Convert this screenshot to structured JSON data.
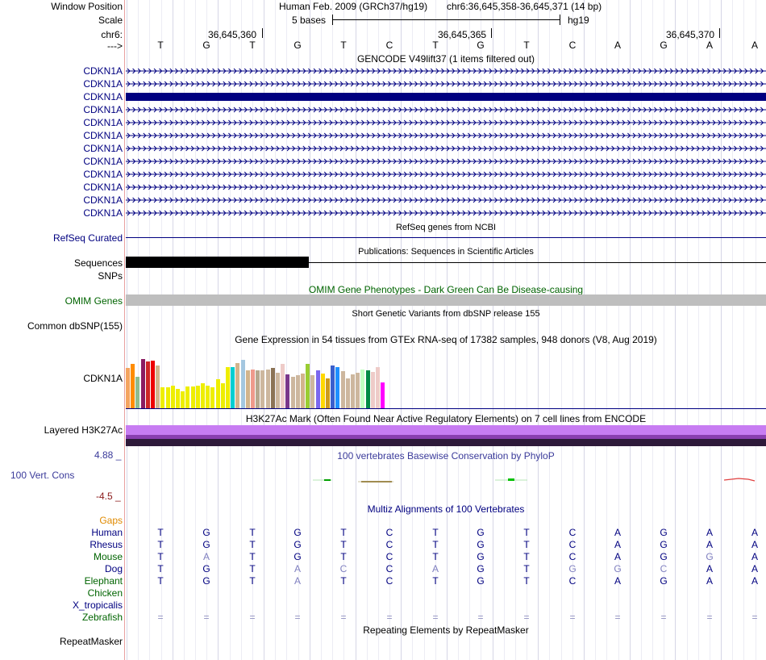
{
  "header": {
    "window_position_label": "Window Position",
    "assembly": "Human Feb. 2009 (GRCh37/hg19)",
    "position": "chr6:36,645,358-36,645,371 (14 bp)",
    "scale_label": "Scale",
    "scale_text": "5 bases",
    "scale_db": "hg19",
    "chrom_label": "chr6:",
    "coords": [
      "36,645,360",
      "36,645,365",
      "36,645,370"
    ],
    "strand_label": "--->",
    "bases": [
      "T",
      "G",
      "T",
      "G",
      "T",
      "C",
      "T",
      "G",
      "T",
      "C",
      "A",
      "G",
      "A",
      "A"
    ]
  },
  "gencode": {
    "title": "GENCODE V49lift37 (1 items filtered out)",
    "genes": [
      "CDKN1A",
      "CDKN1A",
      "CDKN1A",
      "CDKN1A",
      "CDKN1A",
      "CDKN1A",
      "CDKN1A",
      "CDKN1A",
      "CDKN1A",
      "CDKN1A",
      "CDKN1A",
      "CDKN1A"
    ],
    "highlighted_index": 2
  },
  "refseq": {
    "title": "RefSeq genes from NCBI",
    "label": "RefSeq Curated"
  },
  "publications": {
    "title": "Publications: Sequences in Scientific Articles",
    "label1": "Sequences",
    "label2": "SNPs"
  },
  "omim": {
    "title": "OMIM Gene Phenotypes - Dark Green Can Be Disease-causing",
    "label": "OMIM Genes"
  },
  "dbsnp": {
    "title": "Short Genetic Variants from dbSNP release 155",
    "label": "Common dbSNP(155)"
  },
  "gtex": {
    "title": "Gene Expression in 54 tissues from GTEx RNA-seq of 17382 samples, 948 donors (V8, Aug 2019)",
    "label": "CDKN1A",
    "bars": [
      {
        "v": 0.64,
        "c": "#f4a460"
      },
      {
        "v": 0.71,
        "c": "#ff8c00"
      },
      {
        "v": 0.5,
        "c": "#8fbc8f"
      },
      {
        "v": 0.78,
        "c": "#8b1c62"
      },
      {
        "v": 0.74,
        "c": "#cd2626"
      },
      {
        "v": 0.76,
        "c": "#ee0000"
      },
      {
        "v": 0.68,
        "c": "#d2b48c"
      },
      {
        "v": 0.33,
        "c": "#eeee00"
      },
      {
        "v": 0.33,
        "c": "#eeee00"
      },
      {
        "v": 0.36,
        "c": "#eeee00"
      },
      {
        "v": 0.31,
        "c": "#eeee00"
      },
      {
        "v": 0.27,
        "c": "#eeee00"
      },
      {
        "v": 0.35,
        "c": "#eeee00"
      },
      {
        "v": 0.35,
        "c": "#eeee00"
      },
      {
        "v": 0.36,
        "c": "#eeee00"
      },
      {
        "v": 0.4,
        "c": "#eeee00"
      },
      {
        "v": 0.36,
        "c": "#eeee00"
      },
      {
        "v": 0.33,
        "c": "#eeee00"
      },
      {
        "v": 0.46,
        "c": "#eeee00"
      },
      {
        "v": 0.4,
        "c": "#eeee00"
      },
      {
        "v": 0.65,
        "c": "#eeee00"
      },
      {
        "v": 0.66,
        "c": "#00ced1"
      },
      {
        "v": 0.72,
        "c": "#d2b48c"
      },
      {
        "v": 0.77,
        "c": "#a4c7e0"
      },
      {
        "v": 0.6,
        "c": "#d2b48c"
      },
      {
        "v": 0.62,
        "c": "#ee9a8c"
      },
      {
        "v": 0.6,
        "c": "#b5a78e"
      },
      {
        "v": 0.6,
        "c": "#cdb79e"
      },
      {
        "v": 0.62,
        "c": "#cdb79e"
      },
      {
        "v": 0.64,
        "c": "#8b7355"
      },
      {
        "v": 0.56,
        "c": "#cdb79e"
      },
      {
        "v": 0.7,
        "c": "#eecbc8"
      },
      {
        "v": 0.54,
        "c": "#7a378b"
      },
      {
        "v": 0.5,
        "c": "#cdb79e"
      },
      {
        "v": 0.52,
        "c": "#cdb79e"
      },
      {
        "v": 0.55,
        "c": "#d2b48c"
      },
      {
        "v": 0.7,
        "c": "#9acd32"
      },
      {
        "v": 0.52,
        "c": "#cdb79e"
      },
      {
        "v": 0.6,
        "c": "#7b68ee"
      },
      {
        "v": 0.55,
        "c": "#ffd700"
      },
      {
        "v": 0.48,
        "c": "#cd9b1d"
      },
      {
        "v": 0.68,
        "c": "#3a5fcd"
      },
      {
        "v": 0.66,
        "c": "#1e90ff"
      },
      {
        "v": 0.59,
        "c": "#cdb79e"
      },
      {
        "v": 0.47,
        "c": "#cdb79e"
      },
      {
        "v": 0.54,
        "c": "#cdb79e"
      },
      {
        "v": 0.56,
        "c": "#cdb79e"
      },
      {
        "v": 0.62,
        "c": "#c1ffc1"
      },
      {
        "v": 0.6,
        "c": "#008b45"
      },
      {
        "v": 0.58,
        "c": "#eecbc8"
      },
      {
        "v": 0.66,
        "c": "#eecbc8"
      },
      {
        "v": 0.41,
        "c": "#ff00ff"
      }
    ]
  },
  "h3k27ac": {
    "title": "H3K27Ac Mark (Often Found Near Active Regulatory Elements) on 7 cell lines from ENCODE",
    "label": "Layered H3K27Ac"
  },
  "phylop": {
    "title": "100 vertebrates Basewise Conservation by PhyloP",
    "label": "100 Vert. Cons",
    "max": "4.88 _",
    "min": "-4.5 _"
  },
  "multiz": {
    "title": "Multiz Alignments of 100 Vertebrates",
    "gaps_label": "Gaps",
    "species": [
      {
        "name": "Human",
        "color": "#000080",
        "bases": [
          "T",
          "G",
          "T",
          "G",
          "T",
          "C",
          "T",
          "G",
          "T",
          "C",
          "A",
          "G",
          "A",
          "A"
        ]
      },
      {
        "name": "Rhesus",
        "color": "#000080",
        "bases": [
          "T",
          "G",
          "T",
          "G",
          "T",
          "C",
          "T",
          "G",
          "T",
          "C",
          "A",
          "G",
          "A",
          "A"
        ]
      },
      {
        "name": "Mouse",
        "color": "#006400",
        "bases": [
          "T",
          "A",
          "T",
          "G",
          "T",
          "C",
          "T",
          "G",
          "T",
          "C",
          "A",
          "G",
          "G",
          "A"
        ]
      },
      {
        "name": "Dog",
        "color": "#000080",
        "bases": [
          "T",
          "G",
          "T",
          "A",
          "C",
          "C",
          "A",
          "G",
          "T",
          "G",
          "G",
          "C",
          "A",
          "A"
        ]
      },
      {
        "name": "Elephant",
        "color": "#006400",
        "bases": [
          "T",
          "G",
          "T",
          "A",
          "T",
          "C",
          "T",
          "G",
          "T",
          "C",
          "A",
          "G",
          "A",
          "A"
        ]
      },
      {
        "name": "Chicken",
        "color": "#006400",
        "bases": []
      },
      {
        "name": "X_tropicalis",
        "color": "#000080",
        "bases": []
      },
      {
        "name": "Zebrafish",
        "color": "#006400",
        "bases": [
          "=",
          "=",
          "=",
          "=",
          "=",
          "=",
          "=",
          "=",
          "=",
          "=",
          "=",
          "=",
          "=",
          "="
        ]
      }
    ]
  },
  "repeatmasker": {
    "title": "Repeating Elements by RepeatMasker",
    "label": "RepeatMasker"
  },
  "colors": {
    "navy": "#000080",
    "green": "#006400",
    "orange": "#e08a00",
    "conservation": "#3a3a9a",
    "lavender": "#c77cf2"
  }
}
